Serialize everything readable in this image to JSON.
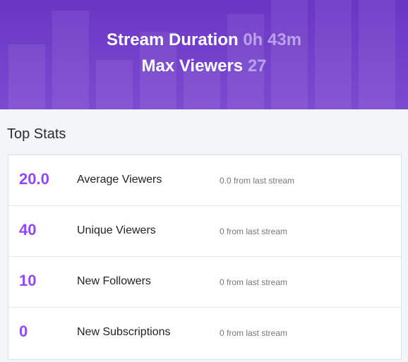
{
  "header": {
    "items": [
      {
        "label": "Stream Duration",
        "value": "0h 43m"
      },
      {
        "label": "Max Viewers",
        "value": "27"
      }
    ]
  },
  "section_title": "Top Stats",
  "stats": [
    {
      "value": "20.0",
      "label": "Average Viewers",
      "change": "0.0 from last stream"
    },
    {
      "value": "40",
      "label": "Unique Viewers",
      "change": "0 from last stream"
    },
    {
      "value": "10",
      "label": "New Followers",
      "change": "0 from last stream"
    },
    {
      "value": "0",
      "label": "New Subscriptions",
      "change": "0 from last stream"
    }
  ]
}
